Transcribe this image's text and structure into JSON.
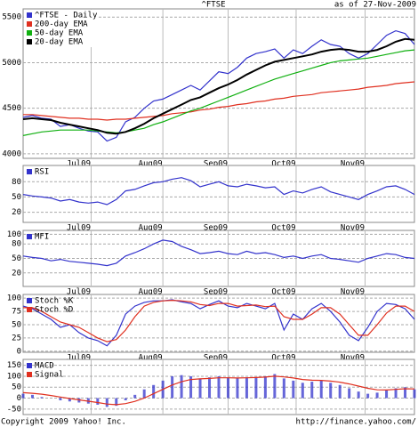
{
  "chart_data": [
    {
      "type": "line",
      "title": "^FTSE",
      "subtitle": "as of 27-Nov-2009",
      "ylim": [
        3950,
        5590
      ],
      "yticks": [
        4000,
        4500,
        5000,
        5500
      ],
      "grid": true,
      "xlim": [
        0,
        42
      ],
      "xticks": [
        {
          "value": 7.3,
          "label": "Jul09"
        },
        {
          "value": 15,
          "label": "Aug09"
        },
        {
          "value": 22,
          "label": "Sep09"
        },
        {
          "value": 29.3,
          "label": "Oct09"
        },
        {
          "value": 36.7,
          "label": "Nov09"
        }
      ],
      "series": [
        {
          "name": "^FTSE - Daily",
          "color": "#3333cc",
          "values": [
            4400,
            4420,
            4390,
            4380,
            4300,
            4320,
            4280,
            4250,
            4240,
            4140,
            4180,
            4350,
            4400,
            4500,
            4580,
            4600,
            4650,
            4700,
            4750,
            4700,
            4800,
            4900,
            4880,
            4950,
            5050,
            5100,
            5120,
            5150,
            5050,
            5140,
            5100,
            5180,
            5250,
            5200,
            5180,
            5100,
            5050,
            5100,
            5200,
            5300,
            5350,
            5320,
            5200
          ]
        },
        {
          "name": "200-day EMA",
          "color": "#e03020",
          "values": [
            4430,
            4430,
            4420,
            4410,
            4400,
            4390,
            4390,
            4380,
            4380,
            4370,
            4380,
            4380,
            4390,
            4400,
            4410,
            4420,
            4440,
            4450,
            4460,
            4480,
            4490,
            4510,
            4520,
            4540,
            4550,
            4570,
            4580,
            4600,
            4610,
            4630,
            4640,
            4650,
            4670,
            4680,
            4690,
            4700,
            4710,
            4730,
            4740,
            4750,
            4770,
            4780,
            4790
          ]
        },
        {
          "name": "50-day EMA",
          "color": "#10b010",
          "values": [
            4200,
            4220,
            4240,
            4250,
            4260,
            4260,
            4260,
            4260,
            4250,
            4240,
            4230,
            4240,
            4260,
            4280,
            4320,
            4350,
            4390,
            4430,
            4470,
            4500,
            4540,
            4580,
            4620,
            4660,
            4700,
            4740,
            4780,
            4820,
            4850,
            4880,
            4910,
            4940,
            4970,
            5000,
            5020,
            5030,
            5040,
            5050,
            5070,
            5090,
            5110,
            5130,
            5140
          ]
        },
        {
          "name": "20-day EMA",
          "color": "#000000",
          "values": [
            4380,
            4390,
            4380,
            4370,
            4340,
            4320,
            4300,
            4280,
            4260,
            4230,
            4220,
            4240,
            4280,
            4330,
            4390,
            4440,
            4490,
            4540,
            4590,
            4620,
            4670,
            4720,
            4760,
            4810,
            4870,
            4920,
            4970,
            5010,
            5030,
            5050,
            5070,
            5090,
            5120,
            5140,
            5150,
            5140,
            5120,
            5120,
            5140,
            5180,
            5230,
            5260,
            5250
          ]
        }
      ]
    },
    {
      "type": "line",
      "ylim": [
        0,
        112
      ],
      "yticks": [
        20,
        50,
        80
      ],
      "grid": true,
      "xlim": [
        0,
        42
      ],
      "xticks": [
        {
          "value": 7.3,
          "label": "Jul09"
        },
        {
          "value": 15,
          "label": "Aug09"
        },
        {
          "value": 22,
          "label": "Sep09"
        },
        {
          "value": 29.3,
          "label": "Oct09"
        },
        {
          "value": 36.7,
          "label": "Nov09"
        }
      ],
      "series": [
        {
          "name": "RSI",
          "color": "#3333cc",
          "values": [
            55,
            52,
            50,
            48,
            42,
            45,
            40,
            38,
            40,
            35,
            45,
            62,
            65,
            72,
            78,
            80,
            85,
            88,
            82,
            70,
            75,
            80,
            72,
            70,
            75,
            72,
            68,
            70,
            55,
            62,
            58,
            65,
            70,
            60,
            55,
            50,
            45,
            55,
            62,
            70,
            72,
            65,
            55
          ]
        }
      ]
    },
    {
      "type": "line",
      "ylim": [
        -8,
        108
      ],
      "yticks": [
        20,
        50,
        80,
        100
      ],
      "grid": true,
      "xlim": [
        0,
        42
      ],
      "xticks": [
        {
          "value": 7.3,
          "label": "Jul09"
        },
        {
          "value": 15,
          "label": "Aug09"
        },
        {
          "value": 22,
          "label": "Sep09"
        },
        {
          "value": 29.3,
          "label": "Oct09"
        },
        {
          "value": 36.7,
          "label": "Nov09"
        }
      ],
      "series": [
        {
          "name": "MFI",
          "color": "#3333cc",
          "values": [
            55,
            52,
            50,
            45,
            48,
            44,
            42,
            40,
            38,
            35,
            40,
            55,
            62,
            70,
            80,
            88,
            85,
            75,
            68,
            60,
            62,
            65,
            60,
            58,
            65,
            60,
            62,
            58,
            52,
            55,
            50,
            55,
            58,
            50,
            48,
            45,
            42,
            50,
            55,
            60,
            58,
            52,
            50
          ]
        }
      ]
    },
    {
      "type": "line",
      "ylim": [
        -2,
        107
      ],
      "yticks": [
        0,
        25,
        50,
        75,
        100
      ],
      "grid": true,
      "xlim": [
        0,
        42
      ],
      "xticks": [
        {
          "value": 7.3,
          "label": "Jul09"
        },
        {
          "value": 15,
          "label": "Aug09"
        },
        {
          "value": 22,
          "label": "Sep09"
        },
        {
          "value": 29.3,
          "label": "Oct09"
        },
        {
          "value": 36.7,
          "label": "Nov09"
        }
      ],
      "series": [
        {
          "name": "Stoch %K",
          "color": "#3333cc",
          "values": [
            85,
            80,
            70,
            60,
            45,
            50,
            35,
            25,
            20,
            10,
            30,
            70,
            85,
            92,
            95,
            95,
            97,
            93,
            90,
            80,
            88,
            95,
            85,
            82,
            90,
            85,
            80,
            90,
            40,
            70,
            60,
            80,
            90,
            75,
            55,
            30,
            20,
            45,
            75,
            90,
            88,
            80,
            60
          ]
        },
        {
          "name": "Stoch %D",
          "color": "#e03020",
          "values": [
            82,
            82,
            75,
            65,
            55,
            50,
            45,
            35,
            25,
            18,
            22,
            40,
            65,
            85,
            92,
            95,
            96,
            95,
            93,
            88,
            86,
            90,
            90,
            85,
            86,
            87,
            84,
            85,
            65,
            60,
            60,
            70,
            82,
            82,
            70,
            50,
            30,
            30,
            50,
            72,
            85,
            85,
            75
          ]
        }
      ]
    },
    {
      "type": "line",
      "ylim": [
        -75,
        177
      ],
      "yticks": [
        -50,
        0,
        50,
        100,
        150
      ],
      "grid": true,
      "xlim": [
        0,
        42
      ],
      "xticks": [
        {
          "value": 7.3,
          "label": "Jul09"
        },
        {
          "value": 15,
          "label": "Aug09"
        },
        {
          "value": 22,
          "label": "Sep09"
        },
        {
          "value": 29.3,
          "label": "Oct09"
        },
        {
          "value": 36.7,
          "label": "Nov09"
        }
      ],
      "series": [
        {
          "name": "MACD",
          "color": "#3333cc",
          "kind": "bar",
          "values": [
            20,
            15,
            5,
            0,
            -10,
            -15,
            -20,
            -25,
            -30,
            -40,
            -35,
            -10,
            15,
            40,
            60,
            80,
            100,
            105,
            100,
            90,
            95,
            100,
            95,
            90,
            95,
            95,
            100,
            110,
            90,
            80,
            70,
            75,
            80,
            70,
            60,
            45,
            30,
            20,
            25,
            35,
            45,
            50,
            40
          ]
        },
        {
          "name": "Signal",
          "color": "#e03020",
          "values": [
            25,
            22,
            18,
            12,
            5,
            -2,
            -8,
            -14,
            -20,
            -27,
            -30,
            -25,
            -15,
            0,
            20,
            40,
            60,
            75,
            85,
            88,
            90,
            93,
            93,
            92,
            93,
            94,
            96,
            100,
            97,
            92,
            85,
            82,
            81,
            78,
            73,
            65,
            55,
            45,
            38,
            37,
            40,
            43,
            42
          ]
        }
      ]
    }
  ],
  "footer": {
    "left": "Copyright 2009 Yahoo! Inc.",
    "right": "http://finance.yahoo.com/"
  }
}
